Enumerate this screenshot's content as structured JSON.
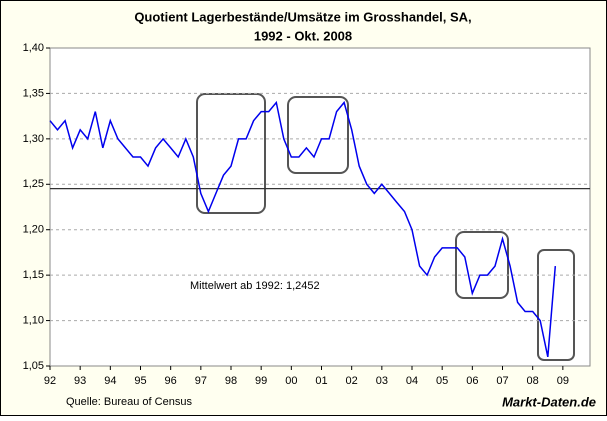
{
  "chart_data": {
    "type": "line",
    "title": "Quotient Lagerbestände/Umsätze im Grosshandel, SA,",
    "subtitle": "1992 - Okt. 2008",
    "source": "Quelle: Bureau of Census",
    "brand": "Markt-Daten.de",
    "mean": {
      "value": 1.2452,
      "label": "Mittelwert ab 1992: 1,2452"
    },
    "x": [
      1992,
      1992.25,
      1992.5,
      1992.75,
      1993,
      1993.25,
      1993.5,
      1993.75,
      1994,
      1994.25,
      1994.5,
      1994.75,
      1995,
      1995.25,
      1995.5,
      1995.75,
      1996,
      1996.25,
      1996.5,
      1996.75,
      1997,
      1997.25,
      1997.5,
      1997.75,
      1998,
      1998.25,
      1998.5,
      1998.75,
      1999,
      1999.25,
      1999.5,
      1999.75,
      2000,
      2000.25,
      2000.5,
      2000.75,
      2001,
      2001.25,
      2001.5,
      2001.75,
      2002,
      2002.25,
      2002.5,
      2002.75,
      2003,
      2003.25,
      2003.5,
      2003.75,
      2004,
      2004.25,
      2004.5,
      2004.75,
      2005,
      2005.25,
      2005.5,
      2005.75,
      2006,
      2006.25,
      2006.5,
      2006.75,
      2007,
      2007.25,
      2007.5,
      2007.75,
      2008,
      2008.25,
      2008.5,
      2008.75
    ],
    "series": [
      {
        "name": "Quotient",
        "color": "#0000ee",
        "values": [
          1.32,
          1.31,
          1.32,
          1.29,
          1.31,
          1.3,
          1.33,
          1.29,
          1.32,
          1.3,
          1.29,
          1.28,
          1.28,
          1.27,
          1.29,
          1.3,
          1.29,
          1.28,
          1.3,
          1.28,
          1.24,
          1.22,
          1.24,
          1.26,
          1.27,
          1.3,
          1.3,
          1.32,
          1.33,
          1.33,
          1.34,
          1.3,
          1.28,
          1.28,
          1.29,
          1.28,
          1.3,
          1.3,
          1.33,
          1.34,
          1.31,
          1.27,
          1.25,
          1.24,
          1.25,
          1.24,
          1.23,
          1.22,
          1.2,
          1.16,
          1.15,
          1.17,
          1.18,
          1.18,
          1.18,
          1.17,
          1.13,
          1.15,
          1.15,
          1.16,
          1.19,
          1.16,
          1.12,
          1.11,
          1.11,
          1.1,
          1.06,
          1.16
        ]
      }
    ],
    "xlim": [
      1992,
      2009.9
    ],
    "xticks": [
      {
        "value": 1992,
        "label": "92"
      },
      {
        "value": 1993,
        "label": "93"
      },
      {
        "value": 1994,
        "label": "94"
      },
      {
        "value": 1995,
        "label": "95"
      },
      {
        "value": 1996,
        "label": "96"
      },
      {
        "value": 1997,
        "label": "97"
      },
      {
        "value": 1998,
        "label": "98"
      },
      {
        "value": 1999,
        "label": "99"
      },
      {
        "value": 2000,
        "label": "00"
      },
      {
        "value": 2001,
        "label": "01"
      },
      {
        "value": 2002,
        "label": "02"
      },
      {
        "value": 2003,
        "label": "03"
      },
      {
        "value": 2004,
        "label": "04"
      },
      {
        "value": 2005,
        "label": "05"
      },
      {
        "value": 2006,
        "label": "06"
      },
      {
        "value": 2007,
        "label": "07"
      },
      {
        "value": 2008,
        "label": "08"
      },
      {
        "value": 2009,
        "label": "09"
      }
    ],
    "ylim": [
      1.05,
      1.4
    ],
    "yticks": [
      {
        "value": 1.05,
        "label": "1,05"
      },
      {
        "value": 1.1,
        "label": "1,10"
      },
      {
        "value": 1.15,
        "label": "1,15"
      },
      {
        "value": 1.2,
        "label": "1,20"
      },
      {
        "value": 1.25,
        "label": "1,25"
      },
      {
        "value": 1.3,
        "label": "1,30"
      },
      {
        "value": 1.35,
        "label": "1,35"
      },
      {
        "value": 1.4,
        "label": "1,40"
      }
    ],
    "grid": true
  }
}
